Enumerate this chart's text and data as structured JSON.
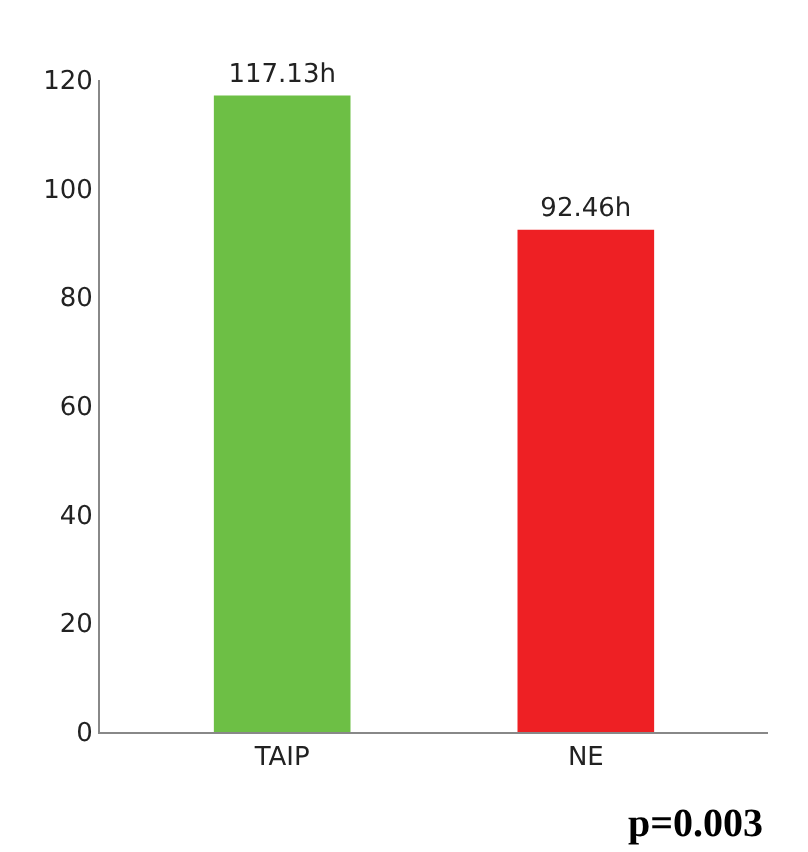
{
  "chart_data": {
    "type": "bar",
    "categories": [
      "TAIP",
      "NE"
    ],
    "values": [
      117.13,
      92.46
    ],
    "colors": [
      "#6dbf45",
      "#ee2024"
    ],
    "value_labels": [
      "117.13h",
      "92.46h"
    ],
    "ylim": [
      0,
      120
    ],
    "yticks": [
      0,
      20,
      40,
      60,
      80,
      100,
      120
    ],
    "grid": false,
    "legend": false,
    "annotations": [
      "p=0.003"
    ]
  }
}
